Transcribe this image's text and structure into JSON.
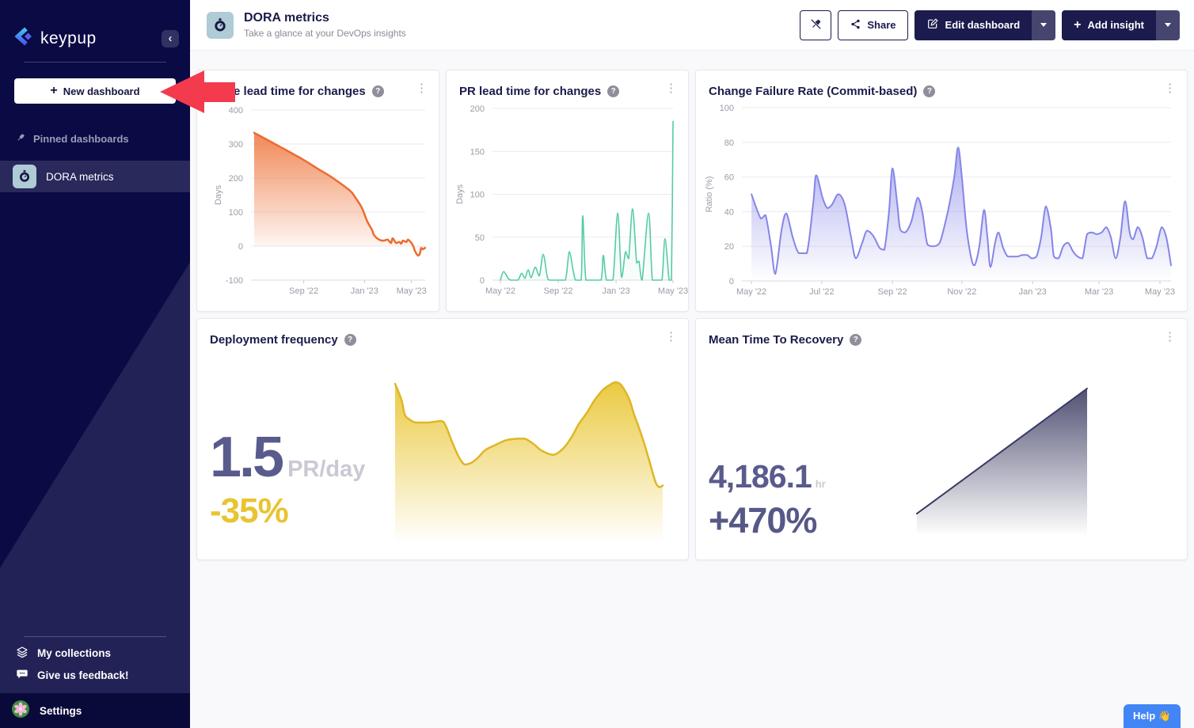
{
  "sidebar": {
    "brand": "keypup",
    "collapse_icon": "‹",
    "new_dashboard": {
      "label": "New dashboard",
      "plus": "+"
    },
    "pinned_section": "Pinned dashboards",
    "pinned_items": [
      {
        "label": "DORA metrics"
      }
    ],
    "footer_links": [
      {
        "label": "My collections"
      },
      {
        "label": "Give us feedback!"
      }
    ],
    "settings": "Settings"
  },
  "topbar": {
    "title": "DORA metrics",
    "subtitle": "Take a glance at your DevOps insights",
    "share": "Share",
    "edit": "Edit dashboard",
    "add": "Add insight",
    "plus": "+"
  },
  "help_button": "Help 👋",
  "kebab_glyph": "⋮",
  "help_q": "?",
  "colors": {
    "sidebar_bg": "#0a0a44",
    "primary_navy": "#1b1b4e",
    "arrow_red": "#f43b4e",
    "help_blue": "#4285f4",
    "stat_slate": "#595b8c",
    "stat_gold": "#e9c430",
    "dash_tile_blue": "#aecbd6"
  },
  "chart_data": [
    {
      "type": "area",
      "title": "Issue lead time for changes",
      "ylabel": "Days",
      "ylim": [
        -100,
        400
      ],
      "yticks": [
        400,
        300,
        200,
        100,
        0,
        -100
      ],
      "xticks": [
        {
          "label": "Sep '22",
          "pos": 0.29
        },
        {
          "label": "Jan '23",
          "pos": 0.645
        },
        {
          "label": "May '23",
          "pos": 0.92
        }
      ],
      "line_color": "#ed6b2f",
      "line_width": 2.5,
      "fill_from": "rgba(237,106,44,0.8)",
      "fill_to": "rgba(237,106,44,0)",
      "fill_base": 0,
      "smooth": true,
      "points": [
        [
          0,
          333
        ],
        [
          0.14,
          295
        ],
        [
          0.28,
          256
        ],
        [
          0.37,
          228
        ],
        [
          0.46,
          200
        ],
        [
          0.56,
          163
        ],
        [
          0.59,
          144
        ],
        [
          0.63,
          112
        ],
        [
          0.66,
          74
        ],
        [
          0.69,
          47
        ],
        [
          0.7,
          33
        ],
        [
          0.73,
          19
        ],
        [
          0.755,
          16
        ],
        [
          0.78,
          19
        ],
        [
          0.8,
          9
        ],
        [
          0.81,
          23
        ],
        [
          0.83,
          9
        ],
        [
          0.85,
          12
        ],
        [
          0.86,
          7
        ],
        [
          0.87,
          16
        ],
        [
          0.89,
          12
        ],
        [
          0.9,
          19
        ],
        [
          0.92,
          9
        ],
        [
          0.93,
          0
        ],
        [
          0.94,
          -14
        ],
        [
          0.958,
          -28
        ],
        [
          0.968,
          -23
        ],
        [
          0.977,
          -5
        ],
        [
          0.986,
          -9
        ],
        [
          1,
          -5
        ]
      ]
    },
    {
      "type": "line",
      "title": "PR lead time for changes",
      "ylabel": "Days",
      "ylim": [
        0,
        200
      ],
      "yticks": [
        200,
        150,
        100,
        50,
        0
      ],
      "xticks": [
        {
          "label": "May '22",
          "pos": 0.027
        },
        {
          "label": "Sep '22",
          "pos": 0.353
        },
        {
          "label": "Jan '23",
          "pos": 0.679
        },
        {
          "label": "May '23",
          "pos": 1.0
        }
      ],
      "line_color": "#56cba5",
      "line_width": 1.6,
      "fill_from": "rgba(86,203,165,0.12)",
      "fill_to": "rgba(86,203,165,0.04)",
      "fill_base": 0,
      "smooth": true,
      "points": [
        [
          0.027,
          0
        ],
        [
          0.045,
          10
        ],
        [
          0.071,
          2
        ],
        [
          0.089,
          0
        ],
        [
          0.125,
          0
        ],
        [
          0.147,
          8
        ],
        [
          0.165,
          2
        ],
        [
          0.183,
          12
        ],
        [
          0.2,
          3
        ],
        [
          0.223,
          15
        ],
        [
          0.246,
          5
        ],
        [
          0.268,
          30
        ],
        [
          0.29,
          5
        ],
        [
          0.304,
          0
        ],
        [
          0.348,
          0
        ],
        [
          0.393,
          0
        ],
        [
          0.415,
          33
        ],
        [
          0.438,
          10
        ],
        [
          0.451,
          0
        ],
        [
          0.482,
          0
        ],
        [
          0.491,
          75
        ],
        [
          0.509,
          0
        ],
        [
          0.549,
          0
        ],
        [
          0.594,
          0
        ],
        [
          0.607,
          29
        ],
        [
          0.625,
          0
        ],
        [
          0.661,
          0
        ],
        [
          0.688,
          78
        ],
        [
          0.71,
          3
        ],
        [
          0.732,
          33
        ],
        [
          0.75,
          25
        ],
        [
          0.772,
          83
        ],
        [
          0.795,
          20
        ],
        [
          0.808,
          22
        ],
        [
          0.826,
          0
        ],
        [
          0.862,
          78
        ],
        [
          0.884,
          0
        ],
        [
          0.915,
          0
        ],
        [
          0.938,
          0
        ],
        [
          0.955,
          48
        ],
        [
          0.978,
          0
        ],
        [
          0.991,
          0
        ],
        [
          1,
          185
        ]
      ]
    },
    {
      "type": "area",
      "title": "Change Failure Rate (Commit-based)",
      "ylabel": "Ratio (%)",
      "ylim": [
        0,
        100
      ],
      "yticks": [
        100,
        80,
        60,
        40,
        20,
        0
      ],
      "xticks": [
        {
          "label": "May '22",
          "pos": 0.015
        },
        {
          "label": "Jul '22",
          "pos": 0.18
        },
        {
          "label": "Sep '22",
          "pos": 0.346
        },
        {
          "label": "Nov '22",
          "pos": 0.509
        },
        {
          "label": "Jan '23",
          "pos": 0.675
        },
        {
          "label": "Mar '23",
          "pos": 0.831
        },
        {
          "label": "May '23",
          "pos": 0.974
        }
      ],
      "line_color": "#8585e8",
      "line_width": 2,
      "fill_from": "rgba(124,124,232,0.62)",
      "fill_to": "rgba(124,124,232,0)",
      "fill_base": 0,
      "smooth": true,
      "points": [
        [
          0.015,
          50
        ],
        [
          0.037,
          36
        ],
        [
          0.048,
          38
        ],
        [
          0.061,
          20
        ],
        [
          0.071,
          4
        ],
        [
          0.086,
          30
        ],
        [
          0.097,
          39
        ],
        [
          0.112,
          25
        ],
        [
          0.126,
          16
        ],
        [
          0.145,
          16
        ],
        [
          0.16,
          45
        ],
        [
          0.167,
          61
        ],
        [
          0.182,
          48
        ],
        [
          0.193,
          42
        ],
        [
          0.204,
          44
        ],
        [
          0.219,
          50
        ],
        [
          0.234,
          44
        ],
        [
          0.249,
          25
        ],
        [
          0.26,
          13
        ],
        [
          0.275,
          22
        ],
        [
          0.286,
          29
        ],
        [
          0.301,
          26
        ],
        [
          0.316,
          19
        ],
        [
          0.327,
          18
        ],
        [
          0.338,
          40
        ],
        [
          0.346,
          65
        ],
        [
          0.357,
          45
        ],
        [
          0.364,
          30
        ],
        [
          0.376,
          28
        ],
        [
          0.39,
          34
        ],
        [
          0.405,
          48
        ],
        [
          0.416,
          40
        ],
        [
          0.428,
          21
        ],
        [
          0.442,
          20
        ],
        [
          0.457,
          22
        ],
        [
          0.476,
          40
        ],
        [
          0.491,
          60
        ],
        [
          0.5,
          77
        ],
        [
          0.509,
          60
        ],
        [
          0.52,
          30
        ],
        [
          0.532,
          12
        ],
        [
          0.539,
          9
        ],
        [
          0.55,
          20
        ],
        [
          0.561,
          41
        ],
        [
          0.569,
          25
        ],
        [
          0.576,
          8
        ],
        [
          0.587,
          22
        ],
        [
          0.595,
          28
        ],
        [
          0.606,
          19
        ],
        [
          0.617,
          14
        ],
        [
          0.628,
          14
        ],
        [
          0.639,
          14
        ],
        [
          0.651,
          15
        ],
        [
          0.662,
          15
        ],
        [
          0.673,
          13
        ],
        [
          0.684,
          14
        ],
        [
          0.695,
          25
        ],
        [
          0.706,
          43
        ],
        [
          0.718,
          30
        ],
        [
          0.725,
          14
        ],
        [
          0.736,
          13
        ],
        [
          0.747,
          20
        ],
        [
          0.758,
          22
        ],
        [
          0.77,
          17
        ],
        [
          0.781,
          14
        ],
        [
          0.792,
          13
        ],
        [
          0.803,
          27
        ],
        [
          0.814,
          28
        ],
        [
          0.825,
          27
        ],
        [
          0.837,
          28
        ],
        [
          0.848,
          31
        ],
        [
          0.859,
          25
        ],
        [
          0.87,
          13
        ],
        [
          0.881,
          25
        ],
        [
          0.892,
          46
        ],
        [
          0.903,
          28
        ],
        [
          0.911,
          24
        ],
        [
          0.922,
          31
        ],
        [
          0.933,
          25
        ],
        [
          0.944,
          13
        ],
        [
          0.955,
          13
        ],
        [
          0.966,
          20
        ],
        [
          0.978,
          31
        ],
        [
          0.989,
          25
        ],
        [
          1,
          9
        ]
      ]
    },
    {
      "type": "area",
      "title": "Deployment frequency",
      "ylim": [
        0,
        100
      ],
      "yticks": [],
      "xticks": [],
      "line_color": "#dfb625",
      "line_width": 2.5,
      "fill_from": "rgba(232,196,44,0.9)",
      "fill_to": "rgba(232,196,44,0)",
      "fill_base": null,
      "smooth": true,
      "big_value": "1.5",
      "unit": "PR/day",
      "delta": "-35%",
      "delta_color": "#e9c430",
      "points": [
        [
          0,
          99
        ],
        [
          0.024,
          89
        ],
        [
          0.036,
          80
        ],
        [
          0.053,
          77
        ],
        [
          0.077,
          75
        ],
        [
          0.124,
          75
        ],
        [
          0.172,
          76
        ],
        [
          0.189,
          73
        ],
        [
          0.213,
          63
        ],
        [
          0.237,
          54
        ],
        [
          0.26,
          49
        ],
        [
          0.284,
          50
        ],
        [
          0.308,
          53
        ],
        [
          0.337,
          58
        ],
        [
          0.373,
          61
        ],
        [
          0.414,
          64
        ],
        [
          0.456,
          65
        ],
        [
          0.485,
          65
        ],
        [
          0.515,
          62
        ],
        [
          0.544,
          58
        ],
        [
          0.568,
          56
        ],
        [
          0.592,
          55
        ],
        [
          0.615,
          57
        ],
        [
          0.639,
          61
        ],
        [
          0.663,
          67
        ],
        [
          0.686,
          74
        ],
        [
          0.716,
          81
        ],
        [
          0.746,
          89
        ],
        [
          0.775,
          95
        ],
        [
          0.799,
          98
        ],
        [
          0.822,
          100
        ],
        [
          0.84,
          99
        ],
        [
          0.858,
          95
        ],
        [
          0.876,
          89
        ],
        [
          0.893,
          80
        ],
        [
          0.911,
          72
        ],
        [
          0.929,
          63
        ],
        [
          0.947,
          53
        ],
        [
          0.964,
          43
        ],
        [
          0.976,
          37
        ],
        [
          0.988,
          35
        ],
        [
          1,
          36
        ]
      ]
    },
    {
      "type": "area",
      "title": "Mean Time To Recovery",
      "ylim": [
        0,
        100
      ],
      "yticks": [],
      "xticks": [],
      "line_color": "#3a3a64",
      "line_width": 2,
      "fill_from": "rgba(56,56,96,0.88)",
      "fill_to": "rgba(56,56,96,0)",
      "fill_base": null,
      "smooth": false,
      "big_value": "4,186.1",
      "unit": "hr",
      "delta": "+470%",
      "delta_color": "#565887",
      "points": [
        [
          0,
          15
        ],
        [
          1,
          100
        ]
      ]
    }
  ]
}
